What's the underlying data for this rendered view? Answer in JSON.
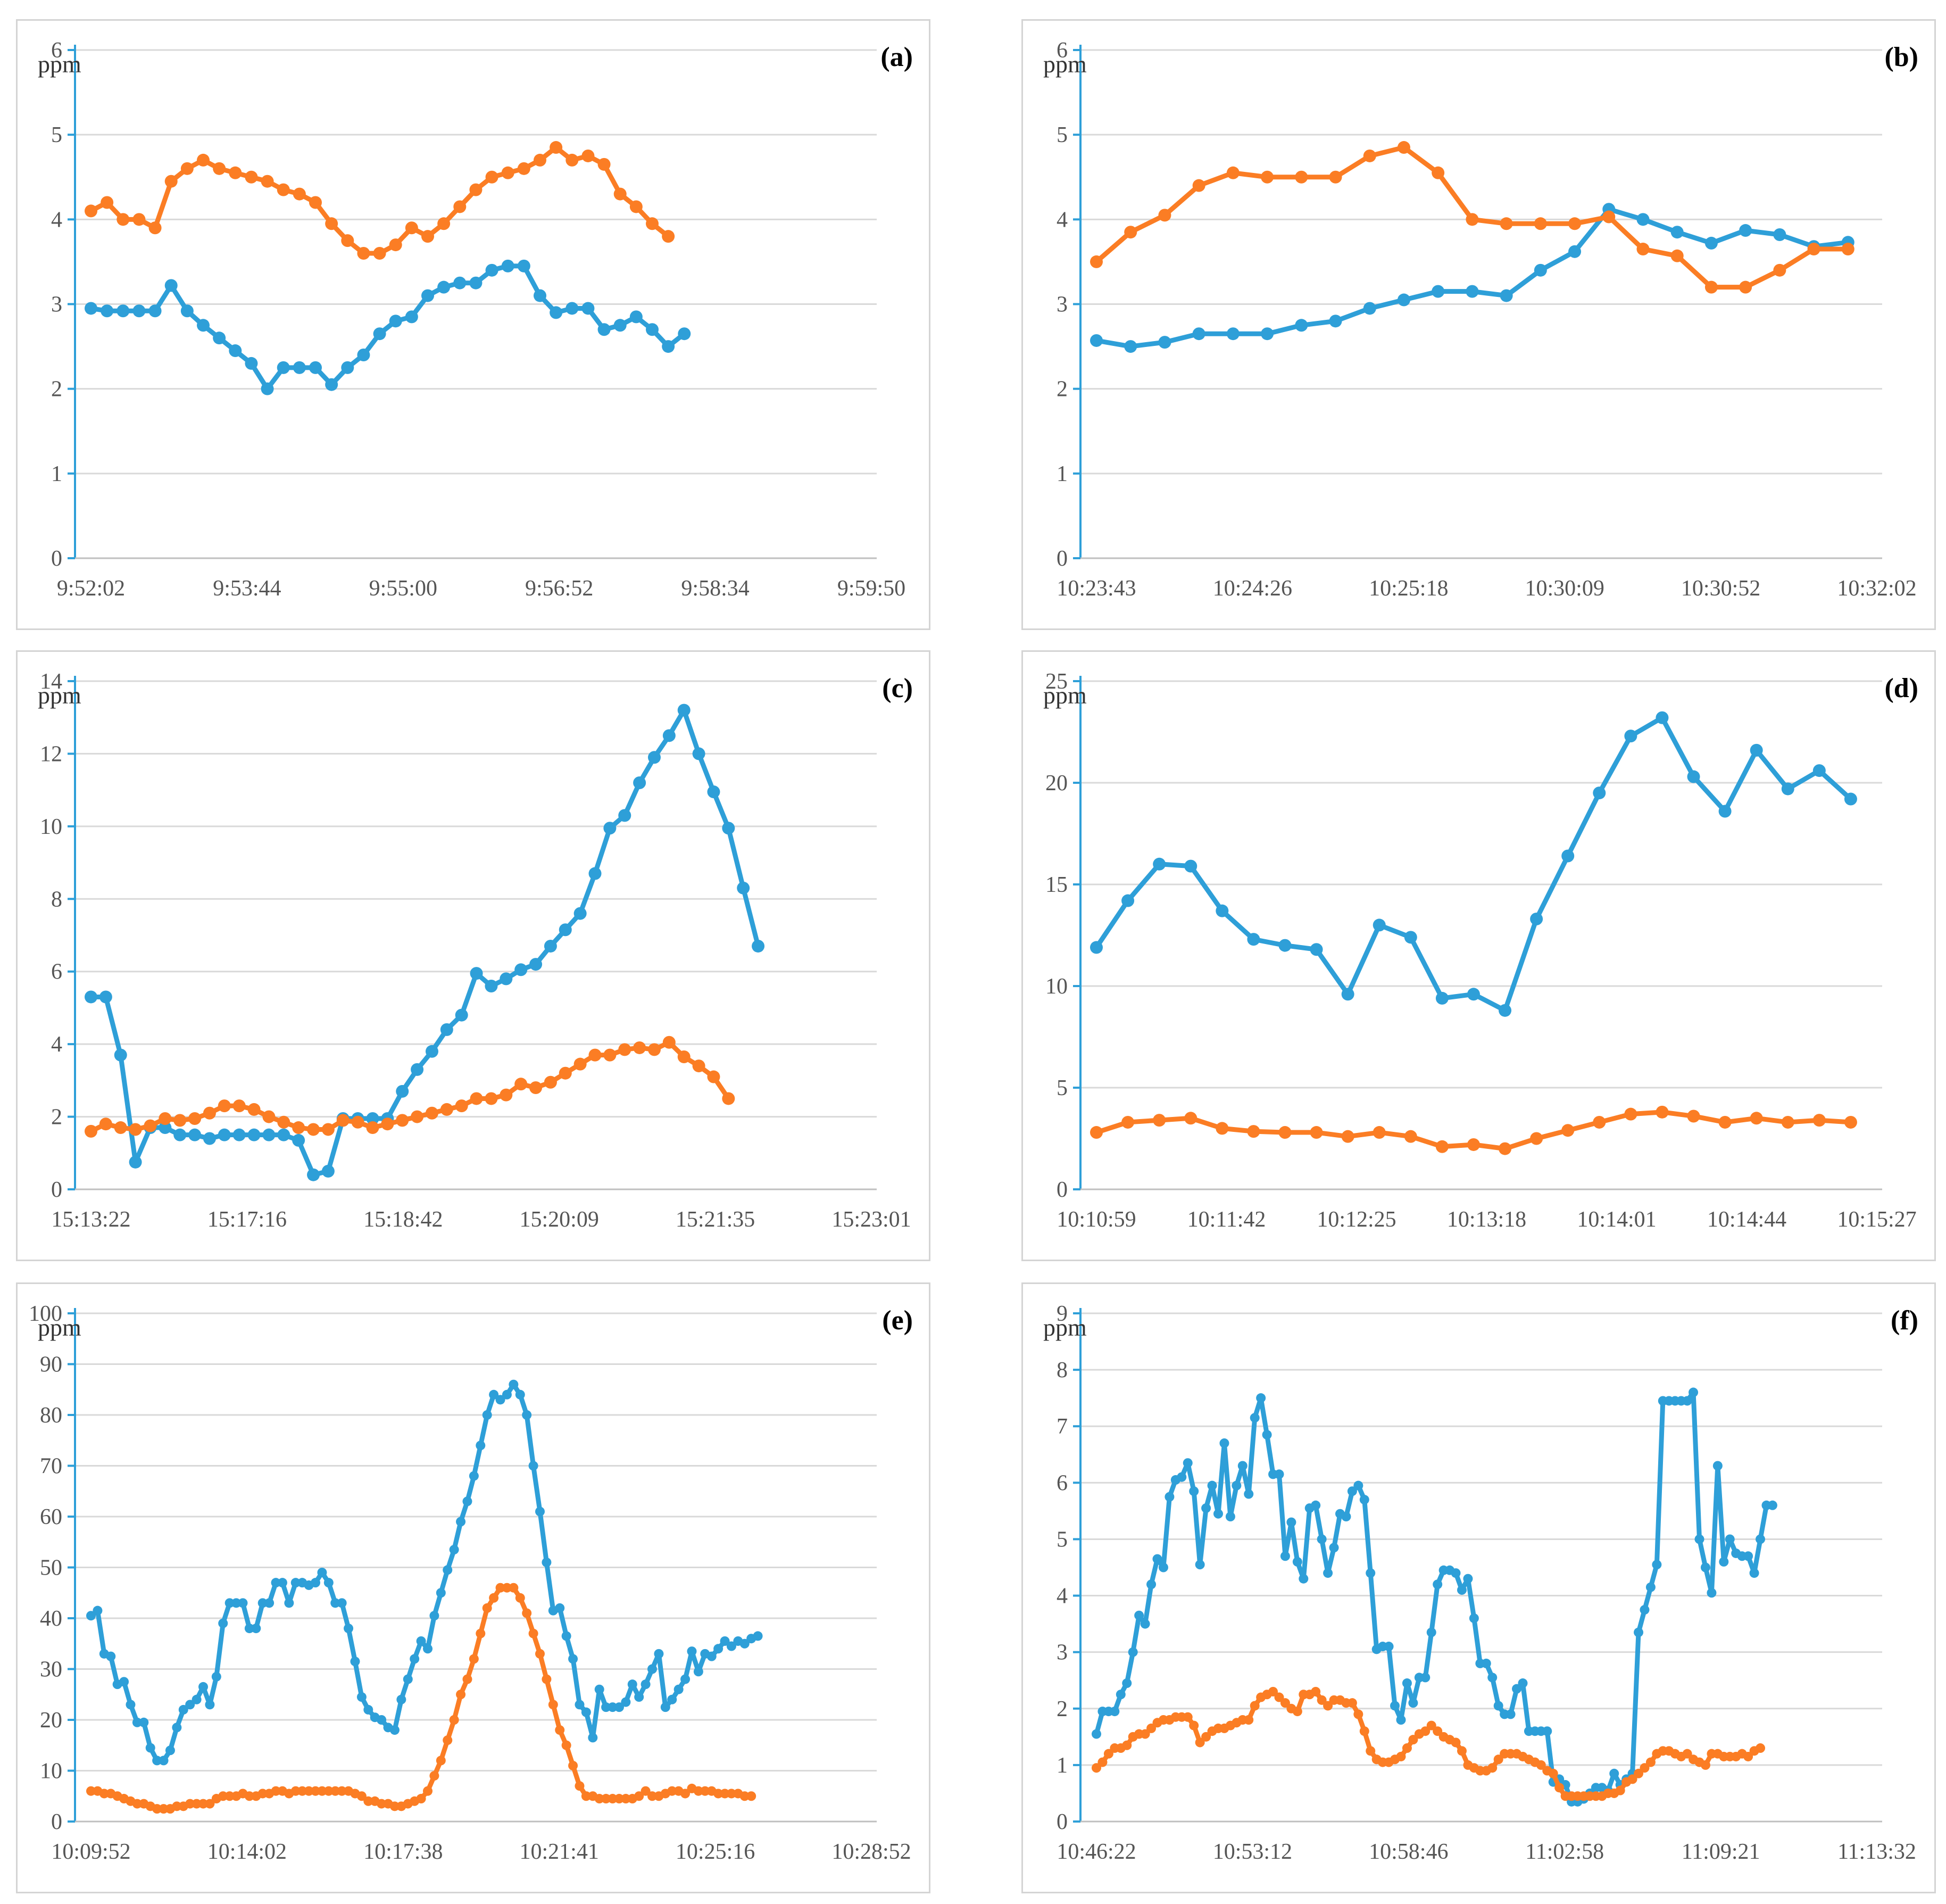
{
  "colors": {
    "blue": "#2e9fd8",
    "orange": "#fb7d24",
    "axis": "#2e9fd8",
    "grid": "#d9d9d9"
  },
  "chart_data": [
    {
      "panel": "(a)",
      "type": "line",
      "unit": "ppm",
      "ylim": [
        0,
        6
      ],
      "yticks": [
        "0",
        "1",
        "2",
        "3",
        "4",
        "5",
        "6"
      ],
      "xtick_labels": [
        "9:52:02",
        "9:53:44",
        "9:55:00",
        "9:56:52",
        "9:58:34",
        "9:59:50"
      ],
      "n_points": 50,
      "series": [
        {
          "name": "blue",
          "values": [
            2.95,
            2.92,
            2.92,
            2.92,
            2.92,
            3.22,
            2.92,
            2.75,
            2.6,
            2.45,
            2.3,
            2.0,
            2.25,
            2.25,
            2.25,
            2.05,
            2.25,
            2.4,
            2.65,
            2.8,
            2.85,
            3.1,
            3.2,
            3.25,
            3.25,
            3.4,
            3.45,
            3.45,
            3.1,
            2.9,
            2.95,
            2.95,
            2.7,
            2.75,
            2.85,
            2.7,
            2.5,
            2.65
          ]
        },
        {
          "name": "orange",
          "values": [
            4.1,
            4.2,
            4.0,
            4.0,
            3.9,
            4.45,
            4.6,
            4.7,
            4.6,
            4.55,
            4.5,
            4.45,
            4.35,
            4.3,
            4.2,
            3.95,
            3.75,
            3.6,
            3.6,
            3.7,
            3.9,
            3.8,
            3.95,
            4.15,
            4.35,
            4.5,
            4.55,
            4.6,
            4.7,
            4.85,
            4.7,
            4.75,
            4.65,
            4.3,
            4.15,
            3.95,
            3.8
          ]
        }
      ]
    },
    {
      "panel": "(b)",
      "type": "line",
      "unit": "ppm",
      "ylim": [
        0,
        6
      ],
      "yticks": [
        "0",
        "1",
        "2",
        "3",
        "4",
        "5",
        "6"
      ],
      "xtick_labels": [
        "10:23:43",
        "10:24:26",
        "10:25:18",
        "10:30:09",
        "10:30:52",
        "10:32:02"
      ],
      "n_points": 24,
      "series": [
        {
          "name": "blue",
          "values": [
            2.57,
            2.5,
            2.55,
            2.65,
            2.65,
            2.65,
            2.75,
            2.8,
            2.95,
            3.05,
            3.15,
            3.15,
            3.1,
            3.4,
            3.62,
            4.12,
            4.0,
            3.85,
            3.72,
            3.87,
            3.82,
            3.68,
            3.73
          ]
        },
        {
          "name": "orange",
          "values": [
            3.5,
            3.85,
            4.05,
            4.4,
            4.55,
            4.5,
            4.5,
            4.5,
            4.75,
            4.85,
            4.55,
            4.0,
            3.95,
            3.95,
            3.95,
            4.03,
            3.65,
            3.57,
            3.2,
            3.2,
            3.4,
            3.65,
            3.65
          ]
        }
      ]
    },
    {
      "panel": "(c)",
      "type": "line",
      "unit": "ppm",
      "ylim": [
        0,
        14
      ],
      "yticks": [
        "0",
        "2",
        "4",
        "6",
        "8",
        "10",
        "12",
        "14"
      ],
      "xtick_labels": [
        "15:13:22",
        "15:17:16",
        "15:18:42",
        "15:20:09",
        "15:21:35",
        "15:23:01"
      ],
      "n_points": 54,
      "series": [
        {
          "name": "blue",
          "values": [
            5.3,
            5.3,
            3.7,
            0.75,
            1.7,
            1.7,
            1.5,
            1.5,
            1.4,
            1.5,
            1.5,
            1.5,
            1.5,
            1.5,
            1.35,
            0.4,
            0.5,
            1.95,
            1.95,
            1.95,
            1.95,
            2.7,
            3.3,
            3.8,
            4.4,
            4.8,
            5.95,
            5.6,
            5.8,
            6.05,
            6.2,
            6.7,
            7.15,
            7.6,
            8.7,
            9.95,
            10.3,
            11.2,
            11.9,
            12.5,
            13.2,
            12.0,
            10.95,
            9.95,
            8.3,
            6.7
          ]
        },
        {
          "name": "orange",
          "values": [
            1.6,
            1.8,
            1.7,
            1.65,
            1.75,
            1.95,
            1.9,
            1.95,
            2.1,
            2.3,
            2.3,
            2.2,
            2.0,
            1.85,
            1.7,
            1.65,
            1.65,
            1.9,
            1.85,
            1.7,
            1.8,
            1.9,
            2.0,
            2.1,
            2.2,
            2.3,
            2.5,
            2.5,
            2.6,
            2.9,
            2.8,
            2.95,
            3.2,
            3.45,
            3.7,
            3.7,
            3.85,
            3.9,
            3.85,
            4.05,
            3.65,
            3.4,
            3.1,
            2.5
          ]
        }
      ]
    },
    {
      "panel": "(d)",
      "type": "line",
      "unit": "ppm",
      "ylim": [
        0,
        25
      ],
      "yticks": [
        "0",
        "5",
        "10",
        "15",
        "20",
        "25"
      ],
      "xtick_labels": [
        "10:10:59",
        "10:11:42",
        "10:12:25",
        "10:13:18",
        "10:14:01",
        "10:14:44",
        "10:15:27"
      ],
      "n_points": 26,
      "series": [
        {
          "name": "blue",
          "values": [
            11.9,
            14.2,
            16.0,
            15.9,
            13.7,
            12.3,
            12.0,
            11.8,
            9.6,
            13.0,
            12.4,
            9.4,
            9.6,
            8.8,
            13.3,
            16.4,
            19.5,
            22.3,
            23.2,
            20.3,
            18.6,
            21.6,
            19.7,
            20.6,
            19.2
          ]
        },
        {
          "name": "orange",
          "values": [
            2.8,
            3.3,
            3.4,
            3.5,
            3.0,
            2.85,
            2.8,
            2.8,
            2.6,
            2.8,
            2.6,
            2.1,
            2.2,
            2.0,
            2.5,
            2.9,
            3.3,
            3.7,
            3.8,
            3.6,
            3.3,
            3.5,
            3.3,
            3.4,
            3.3
          ]
        }
      ]
    },
    {
      "panel": "(e)",
      "type": "line",
      "unit": "ppm",
      "ylim": [
        0,
        100
      ],
      "yticks": [
        "0",
        "10",
        "20",
        "30",
        "40",
        "50",
        "60",
        "70",
        "80",
        "90",
        "100"
      ],
      "xtick_labels": [
        "10:09:52",
        "10:14:02",
        "10:17:38",
        "10:21:41",
        "10:25:16",
        "10:28:52"
      ],
      "n_points": 120,
      "series": [
        {
          "name": "blue",
          "values": [
            40.5,
            41.5,
            33,
            32.5,
            27,
            27.5,
            23,
            19.5,
            19.5,
            14.5,
            12,
            12,
            14,
            18.5,
            22,
            23,
            24,
            26.5,
            23,
            28.5,
            39,
            43,
            43,
            43,
            38,
            38,
            43,
            43,
            47,
            47,
            43,
            47,
            47,
            46.5,
            47,
            49,
            47,
            43,
            43,
            38,
            31.5,
            24.5,
            22,
            20.5,
            20,
            18.5,
            18,
            24,
            28,
            32,
            35.5,
            34,
            40.5,
            45,
            49.5,
            53.5,
            59,
            63,
            68,
            74,
            80,
            84,
            83,
            84,
            86,
            84,
            80,
            70,
            61,
            51,
            41.5,
            42,
            36.5,
            32,
            23,
            21.5,
            16.5,
            26,
            22.5,
            22.5,
            22.5,
            23.5,
            27,
            24.5,
            27,
            30,
            33,
            22.5,
            24,
            26,
            28,
            33.5,
            29.5,
            33,
            32.5,
            34,
            35.5,
            34.5,
            35.5,
            35,
            36,
            36.5
          ]
        },
        {
          "name": "orange",
          "values": [
            6,
            6,
            5.5,
            5.5,
            5,
            4.5,
            4,
            3.5,
            3.5,
            3,
            2.5,
            2.5,
            2.5,
            3,
            3,
            3.5,
            3.5,
            3.5,
            3.5,
            4.5,
            5,
            5,
            5,
            5.5,
            5,
            5,
            5.5,
            5.5,
            6,
            6,
            5.5,
            6,
            6,
            6,
            6,
            6,
            6,
            6,
            6,
            6,
            5.5,
            5,
            4,
            4,
            3.5,
            3.5,
            3,
            3,
            3.5,
            4,
            4.5,
            6,
            9,
            12,
            16,
            20,
            25,
            28,
            32,
            37,
            42,
            44,
            46,
            46,
            46,
            44,
            41,
            37,
            33,
            28,
            23,
            18,
            15,
            11,
            7,
            5,
            5,
            4.5,
            4.5,
            4.5,
            4.5,
            4.5,
            4.5,
            5,
            6,
            5,
            5,
            5.5,
            6,
            6,
            5.5,
            6.5,
            6,
            6,
            6,
            5.5,
            5.5,
            5.5,
            5.5,
            5,
            5
          ]
        }
      ]
    },
    {
      "panel": "(f)",
      "type": "line",
      "unit": "ppm",
      "ylim": [
        0,
        9
      ],
      "yticks": [
        "0",
        "1",
        "2",
        "3",
        "4",
        "5",
        "6",
        "7",
        "8",
        "9"
      ],
      "xtick_labels": [
        "10:46:22",
        "10:53:12",
        "10:58:46",
        "11:02:58",
        "11:09:21",
        "11:13:32"
      ],
      "n_points": 130,
      "series": [
        {
          "name": "blue",
          "values": [
            1.55,
            1.95,
            1.95,
            1.95,
            2.25,
            2.45,
            3.0,
            3.65,
            3.5,
            4.2,
            4.65,
            4.5,
            5.75,
            6.05,
            6.1,
            6.35,
            5.85,
            4.55,
            5.55,
            5.95,
            5.45,
            6.7,
            5.4,
            5.95,
            6.3,
            5.8,
            7.15,
            7.5,
            6.85,
            6.15,
            6.15,
            4.7,
            5.3,
            4.6,
            4.3,
            5.55,
            5.6,
            5.0,
            4.4,
            4.85,
            5.45,
            5.4,
            5.85,
            5.95,
            5.7,
            4.4,
            3.05,
            3.1,
            3.1,
            2.05,
            1.8,
            2.45,
            2.1,
            2.55,
            2.55,
            3.35,
            4.2,
            4.45,
            4.45,
            4.4,
            4.1,
            4.3,
            3.6,
            2.8,
            2.8,
            2.55,
            2.05,
            1.9,
            1.9,
            2.35,
            2.45,
            1.6,
            1.6,
            1.6,
            1.6,
            0.7,
            0.75,
            0.65,
            0.35,
            0.35,
            0.4,
            0.5,
            0.6,
            0.6,
            0.55,
            0.85,
            0.65,
            0.75,
            0.85,
            3.35,
            3.75,
            4.15,
            4.55,
            7.45,
            7.45,
            7.45,
            7.45,
            7.45,
            7.6,
            5.0,
            4.5,
            4.05,
            6.3,
            4.6,
            5.0,
            4.75,
            4.7,
            4.7,
            4.4,
            5.0,
            5.6,
            5.6
          ]
        },
        {
          "name": "orange",
          "values": [
            0.95,
            1.05,
            1.2,
            1.3,
            1.3,
            1.35,
            1.5,
            1.55,
            1.55,
            1.65,
            1.75,
            1.8,
            1.8,
            1.85,
            1.85,
            1.85,
            1.7,
            1.4,
            1.5,
            1.6,
            1.65,
            1.65,
            1.7,
            1.75,
            1.8,
            1.8,
            2.05,
            2.2,
            2.25,
            2.3,
            2.2,
            2.1,
            2.0,
            1.95,
            2.25,
            2.25,
            2.3,
            2.15,
            2.05,
            2.15,
            2.15,
            2.1,
            2.1,
            1.9,
            1.6,
            1.25,
            1.1,
            1.05,
            1.05,
            1.1,
            1.15,
            1.3,
            1.45,
            1.55,
            1.6,
            1.7,
            1.6,
            1.5,
            1.45,
            1.4,
            1.25,
            1.0,
            0.95,
            0.9,
            0.9,
            0.95,
            1.1,
            1.2,
            1.2,
            1.2,
            1.15,
            1.1,
            1.05,
            1.0,
            0.9,
            0.85,
            0.6,
            0.45,
            0.45,
            0.45,
            0.45,
            0.45,
            0.45,
            0.45,
            0.5,
            0.5,
            0.55,
            0.7,
            0.75,
            0.85,
            0.95,
            1.05,
            1.2,
            1.25,
            1.25,
            1.2,
            1.15,
            1.2,
            1.1,
            1.05,
            1.0,
            1.2,
            1.2,
            1.15,
            1.15,
            1.15,
            1.2,
            1.15,
            1.25,
            1.3
          ]
        }
      ]
    }
  ]
}
